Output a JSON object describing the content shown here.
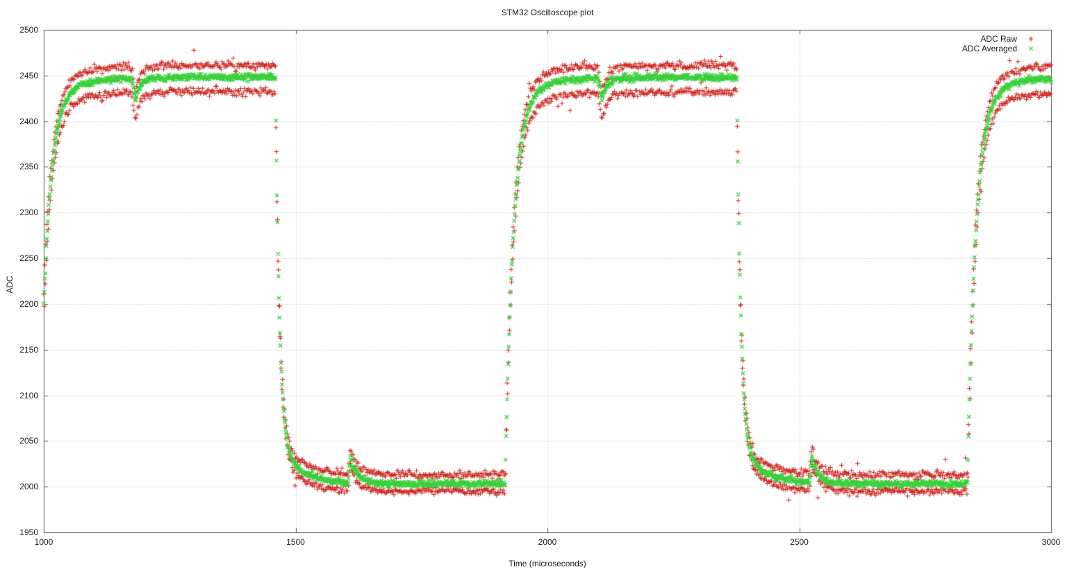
{
  "theme": {
    "background": "#ffffff",
    "text": "#1a1a1a",
    "border": "#555555",
    "grid": "#b5b5b5"
  },
  "chart_data": {
    "type": "scatter",
    "title": "STM32 Oscilloscope plot",
    "xlabel": "Time (microseconds)",
    "ylabel": "ADC",
    "xlim": [
      1000,
      3000
    ],
    "ylim": [
      1950,
      2500
    ],
    "x_ticks": [
      1000,
      1500,
      2000,
      2500,
      3000
    ],
    "y_ticks": [
      1950,
      2000,
      2050,
      2100,
      2150,
      2200,
      2250,
      2300,
      2350,
      2400,
      2450,
      2500
    ],
    "grid": true,
    "legend_position": "top-right",
    "series": [
      {
        "name": "ADC Raw",
        "marker": "plus",
        "color": "#cc2019"
      },
      {
        "name": "ADC Averaged",
        "marker": "cross",
        "color": "#3bd03b"
      }
    ],
    "waveform": {
      "description": "square wave measured by ADC: low ~2003, high ~2448 counts, period ~920 us, exponential RC edges, dip glitch after each rising edge, bump glitch after each falling edge; raw samples alternate between two noise bands around the averaged trace",
      "sample_period_us": 1,
      "low_level": 2003,
      "high_level": 2448,
      "rise_edges_us": [
        990,
        1916,
        2834
      ],
      "fall_edges_us": [
        1460,
        2376
      ],
      "rise_tau_us": 16,
      "rise_tail_tau_us": 50,
      "rise_tail_amp": 35,
      "fall_tau_us": 8,
      "fall_tail_tau_us": 45,
      "fall_tail_amp": 42,
      "high_glitch": {
        "delay_us": 184,
        "depth_raw": 30,
        "depth_avg": 24,
        "attack_us": 8,
        "recovery_tau_us": 10
      },
      "low_glitch": {
        "delay_us": 144,
        "height_raw": 27,
        "height_avg": 27,
        "attack_us": 5,
        "recovery_tau_us": 14
      },
      "raw_offsets_high": [
        13,
        -16
      ],
      "raw_offsets_low": [
        10,
        -8
      ],
      "raw_noise_sigma": 2.2,
      "avg_noise_sigma": 1.7,
      "outlier_probability": 0.012,
      "seed": 42
    }
  }
}
